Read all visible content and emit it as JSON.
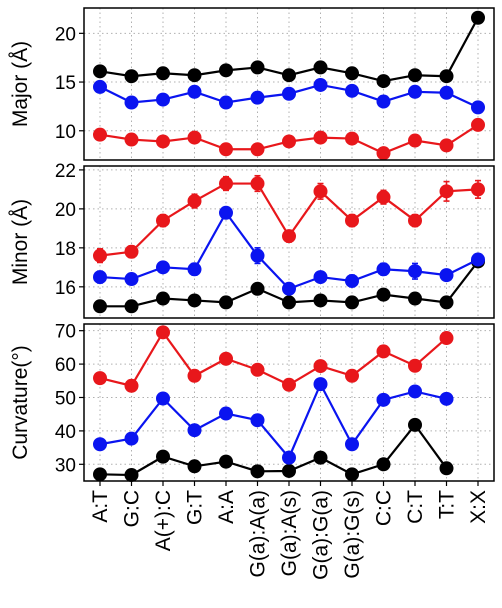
{
  "chart_data": {
    "type": "line",
    "layout": "three vertically stacked panels sharing the x axis",
    "grid": true,
    "grid_style": "dotted",
    "categories": [
      "A:T",
      "G:C",
      "A(+):C",
      "G:T",
      "A:A",
      "G(a):A(a)",
      "G(a):A(s)",
      "G(a):G(a)",
      "G(a):G(s)",
      "C:C",
      "C:T",
      "T:T",
      "X:X"
    ],
    "colors": {
      "black": "#000000",
      "blue": "#0a14f0",
      "red": "#e8171b"
    },
    "panels": [
      {
        "ylabel": "Major (Å)",
        "ylim": [
          7,
          22.6
        ],
        "yticks": [
          10,
          15,
          20
        ],
        "series": [
          {
            "color": "black",
            "values": [
              16.1,
              15.6,
              15.9,
              15.7,
              16.2,
              16.5,
              15.7,
              16.5,
              15.9,
              15.1,
              15.7,
              15.6,
              21.6
            ],
            "errors": [
              0,
              0,
              0,
              0,
              0,
              0,
              0,
              0,
              0,
              0,
              0,
              0,
              0
            ]
          },
          {
            "color": "blue",
            "values": [
              14.5,
              12.9,
              13.2,
              14.0,
              12.9,
              13.4,
              13.8,
              14.7,
              14.1,
              13.0,
              14.0,
              13.9,
              12.4
            ],
            "errors": [
              0,
              0,
              0,
              0,
              0,
              0,
              0,
              0,
              0,
              0,
              0,
              0,
              0
            ]
          },
          {
            "color": "red",
            "values": [
              9.6,
              9.1,
              8.9,
              9.3,
              8.1,
              8.1,
              8.9,
              9.3,
              9.2,
              7.7,
              9.0,
              8.5,
              10.6
            ],
            "errors": [
              0,
              0,
              0,
              0,
              0,
              0,
              0,
              0,
              0,
              0,
              0,
              0,
              0
            ]
          }
        ]
      },
      {
        "ylabel": "Minor (Å)",
        "ylim": [
          14.4,
          22.2
        ],
        "yticks": [
          16,
          18,
          20,
          22
        ],
        "series": [
          {
            "color": "black",
            "values": [
              15.0,
              15.0,
              15.4,
              15.3,
              15.2,
              15.9,
              15.2,
              15.3,
              15.2,
              15.6,
              15.4,
              15.2,
              17.3
            ],
            "errors": [
              0,
              0,
              0,
              0,
              0,
              0,
              0,
              0,
              0,
              0,
              0,
              0,
              0
            ]
          },
          {
            "color": "blue",
            "values": [
              16.5,
              16.4,
              17.0,
              16.9,
              19.8,
              17.6,
              15.9,
              16.5,
              16.3,
              16.9,
              16.8,
              16.6,
              17.4
            ],
            "errors": [
              0.3,
              0.25,
              0.25,
              0.3,
              0.25,
              0.4,
              0.25,
              0.25,
              0.3,
              0.3,
              0.4,
              0.25,
              0.2
            ]
          },
          {
            "color": "red",
            "values": [
              17.6,
              17.8,
              19.4,
              20.4,
              21.3,
              21.3,
              18.6,
              20.9,
              19.4,
              20.6,
              19.4,
              20.9,
              21.0
            ],
            "errors": [
              0.35,
              0.3,
              0.3,
              0.35,
              0.35,
              0.4,
              0.3,
              0.4,
              0.3,
              0.35,
              0.3,
              0.5,
              0.45
            ]
          }
        ]
      },
      {
        "ylabel": "Curvature(°)",
        "ylim": [
          25,
          72
        ],
        "yticks": [
          30,
          40,
          50,
          60,
          70
        ],
        "series": [
          {
            "color": "black",
            "values": [
              27.0,
              26.8,
              32.3,
              29.4,
              30.8,
              27.9,
              28.0,
              32.0,
              27.0,
              30.0,
              41.8,
              28.8,
              null
            ],
            "errors": [
              0,
              0,
              0,
              0,
              0,
              0,
              0,
              0,
              0,
              0,
              0,
              0,
              0
            ]
          },
          {
            "color": "blue",
            "values": [
              36.0,
              37.7,
              49.7,
              40.2,
              45.2,
              43.2,
              32.0,
              54.0,
              36.0,
              49.3,
              51.8,
              49.6,
              null
            ],
            "errors": [
              0,
              0,
              0,
              0,
              0,
              0,
              0,
              0,
              0,
              0,
              0,
              0,
              0
            ]
          },
          {
            "color": "red",
            "values": [
              55.8,
              53.5,
              69.5,
              56.5,
              61.6,
              58.3,
              53.8,
              59.4,
              56.5,
              63.8,
              59.5,
              67.8,
              null
            ],
            "errors": [
              0,
              0,
              0,
              0,
              0,
              0,
              0,
              0,
              0,
              0,
              0,
              0,
              0
            ]
          }
        ]
      }
    ]
  }
}
